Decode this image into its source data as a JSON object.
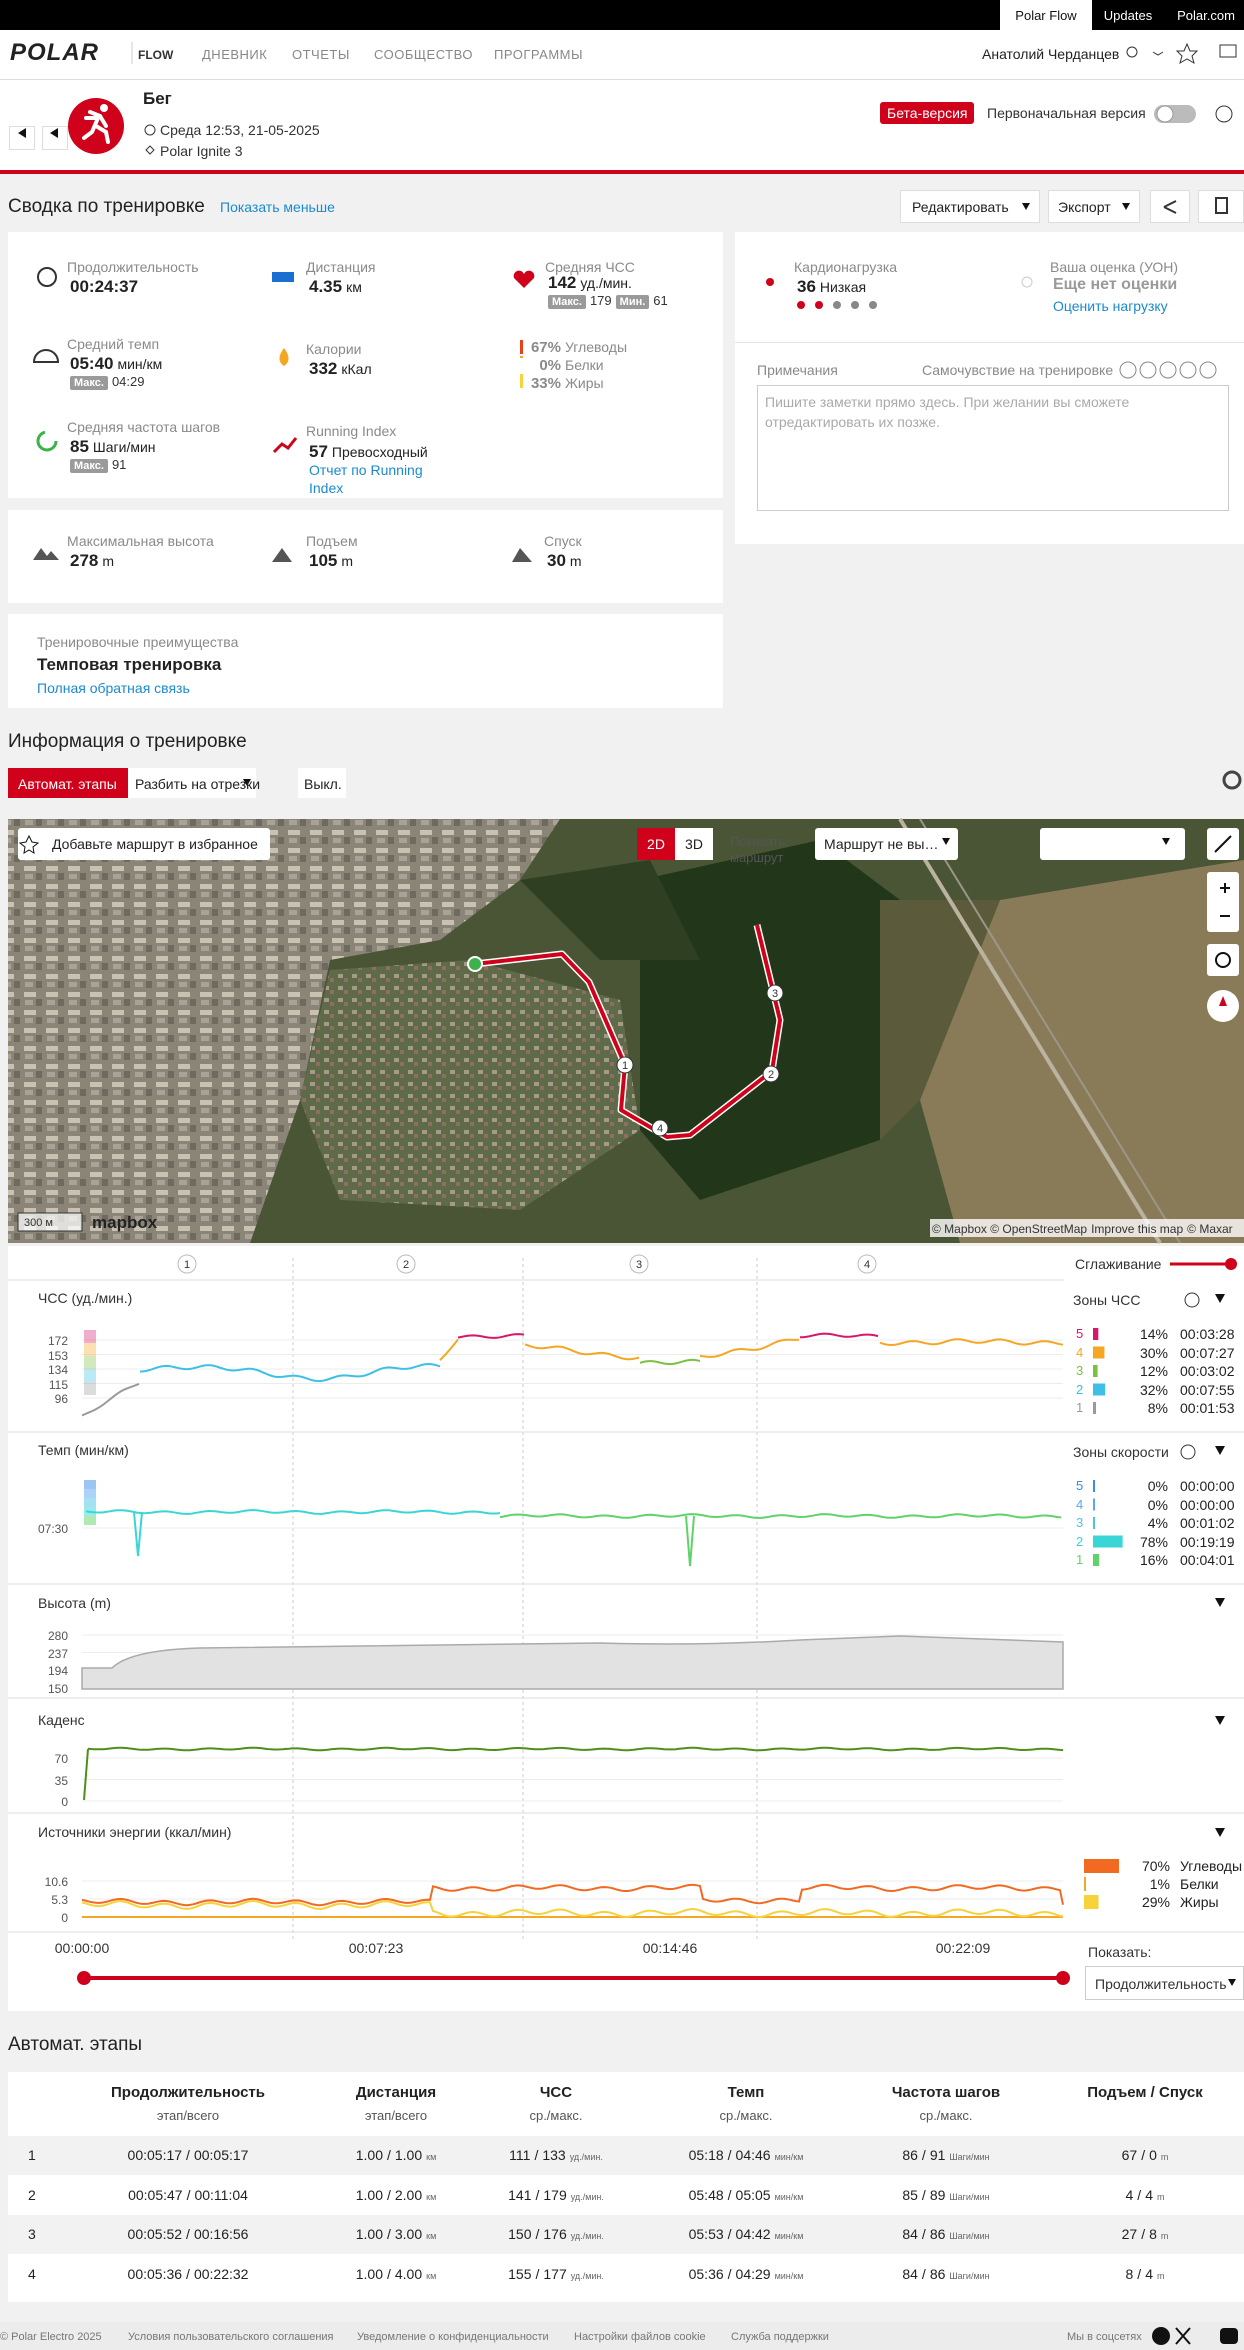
{
  "topbar": {
    "links": [
      "Polar Flow",
      "Updates",
      "Polar.com"
    ]
  },
  "nav": {
    "logo": "POLAR",
    "product": "FLOW",
    "menu": [
      "ДНЕВНИК",
      "ОТЧЕТЫ",
      "СООБЩЕСТВО",
      "ПРОГРАММЫ"
    ],
    "user": "Анатолий Черданцев"
  },
  "header": {
    "sport": "Бег",
    "datetime": "Среда 12:53, 21-05-2025",
    "device": "Polar Ignite 3",
    "beta": "Бета-версия",
    "original": "Первоначальная версия"
  },
  "summary": {
    "title": "Сводка по тренировке",
    "toggle": "Показать меньше",
    "edit": "Редактировать",
    "export": "Экспорт"
  },
  "stats": {
    "duration": {
      "label": "Продолжительность",
      "value": "00:24:37"
    },
    "distance": {
      "label": "Дистанция",
      "value": 4.35,
      "unit": "км"
    },
    "avg_hr": {
      "label": "Средняя ЧСС",
      "value": 142,
      "unit": "уд./мин.",
      "max_label": "Макс.",
      "max": 179,
      "min_label": "Мин.",
      "min": 61
    },
    "pace": {
      "label": "Средний темп",
      "value": "05:40",
      "unit": "мин/км",
      "max_label": "Макс.",
      "max": "04:29"
    },
    "calories": {
      "label": "Калории",
      "value": 332,
      "unit": "кКал"
    },
    "sources": [
      {
        "percent": "67%",
        "name": "Углеводы",
        "color": "#e8401c"
      },
      {
        "percent": "0%",
        "name": "Белки",
        "color": "#f5a623"
      },
      {
        "percent": "33%",
        "name": "Жиры",
        "color": "#f8d23a"
      }
    ],
    "cadence": {
      "label": "Средняя частота шагов",
      "value": 85,
      "unit": "Шаги/мин",
      "max_label": "Макс.",
      "max": 91
    },
    "running_index": {
      "label": "Running Index",
      "value": 57,
      "level": "Превосходный",
      "link": "Отчет по Running Index"
    },
    "max_altitude": {
      "label": "Максимальная высота",
      "value": 278,
      "unit": "m"
    },
    "ascent": {
      "label": "Подъем",
      "value": 105,
      "unit": "m"
    },
    "descent": {
      "label": "Спуск",
      "value": 30,
      "unit": "m"
    }
  },
  "benefit": {
    "label": "Тренировочные преимущества",
    "value": "Темповая тренировка",
    "link": "Полная обратная связь"
  },
  "load": {
    "label": "Кардионагрузка",
    "value": 36,
    "level": "Низкая",
    "rating_label": "Ваша оценка (УОН)",
    "rating_value": "Еще нет оценки",
    "rating_link": "Оценить нагрузку"
  },
  "notes": {
    "label": "Примечания",
    "feeling": "Самочувствие на тренировке",
    "placeholder": "Пишите заметки прямо здесь. При желании вы сможете отредактировать их позже."
  },
  "info": {
    "title": "Информация о тренировке",
    "tabs": [
      "Автомат. этапы",
      "Разбить на отрезки",
      "Выкл."
    ]
  },
  "map": {
    "favorite": "Добавьте маршрут в избранное",
    "modes": [
      "2D",
      "3D"
    ],
    "show_route": "Показать маршрут",
    "route_select": "Маршрут не вы…",
    "scale": "300 м",
    "brand": "mapbox",
    "attribution": "© Mapbox © OpenStreetMap",
    "improve": "Improve this map",
    "maxar": "© Maxar",
    "markers": [
      1,
      2,
      3,
      4
    ]
  },
  "graphs": {
    "laps": [
      1,
      2,
      3,
      4
    ],
    "smoothing": "Сглаживание",
    "hr": {
      "title": "ЧСС (уд./мин.)",
      "yticks": [
        172,
        153,
        134,
        115,
        96
      ],
      "zones_title": "Зоны ЧСС",
      "zones": [
        {
          "zone": 5,
          "percent": "14%",
          "time": "00:03:28",
          "color": "#d6176a"
        },
        {
          "zone": 4,
          "percent": "30%",
          "time": "00:07:27",
          "color": "#f5a623"
        },
        {
          "zone": 3,
          "percent": "12%",
          "time": "00:03:02",
          "color": "#7ac142"
        },
        {
          "zone": 2,
          "percent": "32%",
          "time": "00:07:55",
          "color": "#3cc0e6"
        },
        {
          "zone": 1,
          "percent": "8%",
          "time": "00:01:53",
          "color": "#9a9a9a"
        }
      ]
    },
    "pace": {
      "title": "Темп (мин/км)",
      "yticks": [
        "07:30"
      ],
      "zones_title": "Зоны скорости",
      "zones": [
        {
          "zone": 5,
          "percent": "0%",
          "time": "00:00:00",
          "color": "#3a8ee6"
        },
        {
          "zone": 4,
          "percent": "0%",
          "time": "00:00:00",
          "color": "#5aa8f0"
        },
        {
          "zone": 3,
          "percent": "4%",
          "time": "00:01:02",
          "color": "#4ec3e8"
        },
        {
          "zone": 2,
          "percent": "78%",
          "time": "00:19:19",
          "color": "#3ad6d6"
        },
        {
          "zone": 1,
          "percent": "16%",
          "time": "00:04:01",
          "color": "#5fd36a"
        }
      ]
    },
    "altitude": {
      "title": "Высота (m)",
      "yticks": [
        280,
        237,
        194,
        150
      ]
    },
    "cadence": {
      "title": "Каденс",
      "yticks": [
        70,
        35,
        0
      ]
    },
    "energy": {
      "title": "Источники энергии (ккал/мин)",
      "yticks": [
        10.6,
        5.3,
        0
      ],
      "legend": [
        {
          "percent": "70%",
          "name": "Углеводы",
          "color": "#f26a21"
        },
        {
          "percent": "1%",
          "name": "Белки",
          "color": "#f5a623"
        },
        {
          "percent": "29%",
          "name": "Жиры",
          "color": "#f8d23a"
        }
      ]
    },
    "xticks": [
      "00:00:00",
      "00:07:23",
      "00:14:46",
      "00:22:09"
    ],
    "show_label": "Показать:",
    "show_select": "Продолжительность"
  },
  "laps_table": {
    "title": "Автомат. этапы",
    "separator": "/",
    "headers": [
      {
        "title": "Продолжительность",
        "sub": "этап/всего"
      },
      {
        "title": "Дистанция",
        "sub": "этап/всего"
      },
      {
        "title": "ЧСС",
        "sub": "ср./макс."
      },
      {
        "title": "Темп",
        "sub": "ср./макс."
      },
      {
        "title": "Частота шагов",
        "sub": "ср./макс."
      },
      {
        "title": "Подъем / Спуск"
      }
    ],
    "units": {
      "distance": "км",
      "hr": "уд./мин.",
      "pace": "мин/км",
      "cadence": "Шаги/мин",
      "elevation": "m"
    },
    "rows": [
      {
        "lap": 1,
        "duration": "00:05:17",
        "total": "00:05:17",
        "distance": "1.00",
        "distance_total": "1.00",
        "hr_avg": 111,
        "hr_max": 133,
        "pace_avg": "05:18",
        "pace_max": "04:46",
        "cadence_avg": 86,
        "cadence_max": 91,
        "ascent": 67,
        "descent": 0
      },
      {
        "lap": 2,
        "duration": "00:05:47",
        "total": "00:11:04",
        "distance": "1.00",
        "distance_total": "2.00",
        "hr_avg": 141,
        "hr_max": 179,
        "pace_avg": "05:48",
        "pace_max": "05:05",
        "cadence_avg": 85,
        "cadence_max": 89,
        "ascent": 4,
        "descent": 4
      },
      {
        "lap": 3,
        "duration": "00:05:52",
        "total": "00:16:56",
        "distance": "1.00",
        "distance_total": "3.00",
        "hr_avg": 150,
        "hr_max": 176,
        "pace_avg": "05:53",
        "pace_max": "04:42",
        "cadence_avg": 84,
        "cadence_max": 86,
        "ascent": 27,
        "descent": 8
      },
      {
        "lap": 4,
        "duration": "00:05:36",
        "total": "00:22:32",
        "distance": "1.00",
        "distance_total": "4.00",
        "hr_avg": 155,
        "hr_max": 177,
        "pace_avg": "05:36",
        "pace_max": "04:29",
        "cadence_avg": 84,
        "cadence_max": 86,
        "ascent": 8,
        "descent": 4
      }
    ]
  },
  "footer": {
    "copyright": "© Polar Electro 2025",
    "links": [
      "Условия пользовательского соглашения",
      "Уведомление о конфиденциальности",
      "Настройки файлов cookie",
      "Служба поддержки"
    ],
    "social": "Мы в соцсетях"
  }
}
